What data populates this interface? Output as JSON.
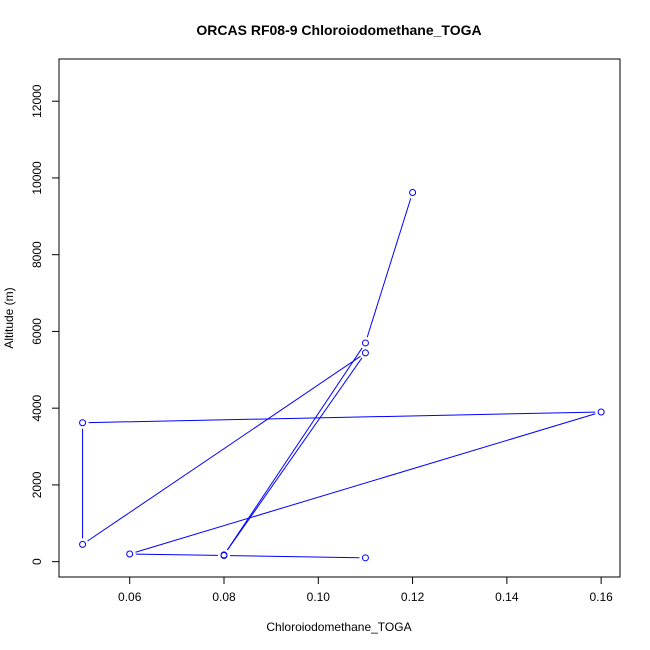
{
  "chart_data": {
    "type": "line",
    "title": "ORCAS RF08-9 Chloroiodomethane_TOGA",
    "xlabel": "Chloroiodomethane_TOGA",
    "ylabel": "Altitude (m)",
    "xlim": [
      0.045,
      0.164
    ],
    "ylim": [
      -400,
      13100
    ],
    "xticks": [
      {
        "value": 0.06,
        "label": "0.06"
      },
      {
        "value": 0.08,
        "label": "0.08"
      },
      {
        "value": 0.1,
        "label": "0.10"
      },
      {
        "value": 0.12,
        "label": "0.12"
      },
      {
        "value": 0.14,
        "label": "0.14"
      },
      {
        "value": 0.16,
        "label": "0.16"
      }
    ],
    "yticks": [
      {
        "value": 0,
        "label": "0"
      },
      {
        "value": 2000,
        "label": "2000"
      },
      {
        "value": 4000,
        "label": "4000"
      },
      {
        "value": 6000,
        "label": "6000"
      },
      {
        "value": 8000,
        "label": "8000"
      },
      {
        "value": 10000,
        "label": "10000"
      },
      {
        "value": 12000,
        "label": "12000"
      }
    ],
    "grid": false,
    "series": [
      {
        "color": "#0000ff",
        "points": [
          {
            "x": 0.12,
            "y": 9620
          },
          {
            "x": 0.11,
            "y": 5700
          },
          {
            "x": 0.08,
            "y": 175
          },
          {
            "x": 0.11,
            "y": 5440
          },
          {
            "x": 0.05,
            "y": 450
          },
          {
            "x": 0.05,
            "y": 3620
          },
          {
            "x": 0.16,
            "y": 3900
          },
          {
            "x": 0.06,
            "y": 200
          },
          {
            "x": 0.08,
            "y": 160
          },
          {
            "x": 0.11,
            "y": 100
          }
        ]
      }
    ]
  }
}
